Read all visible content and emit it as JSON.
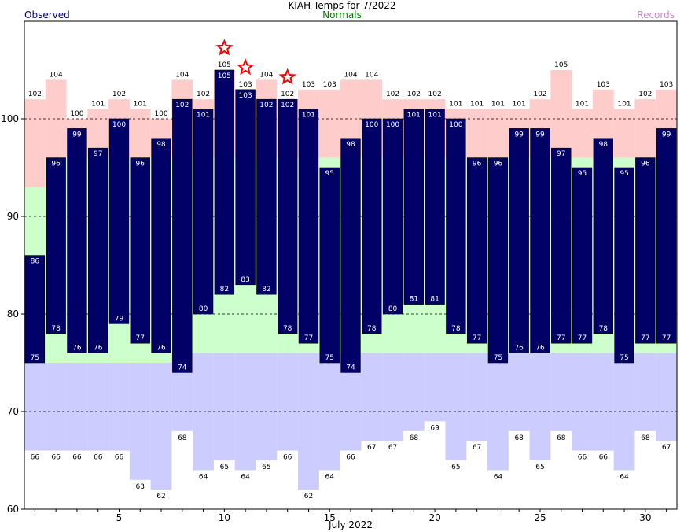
{
  "header": {
    "title": "KIAH Temps for 7/2022",
    "normals_label": "Normals",
    "observed_label": "Observed",
    "records_label": "Records"
  },
  "colors": {
    "observed": "#000066",
    "normal_high": "#ccffcc",
    "normal_low": "#ccccff",
    "record_high": "#ffcccc",
    "record_low": "#ffffff",
    "record_star": "#ff0000",
    "text": "#000000"
  },
  "chart_data": {
    "type": "bar",
    "title": "KIAH Temps for 7/2022",
    "xlabel": "July 2022",
    "ylabel": "",
    "ylim": [
      60,
      110
    ],
    "xlim": [
      0.5,
      31.5
    ],
    "yticks": [
      60,
      70,
      80,
      90,
      100
    ],
    "xticks": [
      5,
      10,
      15,
      20,
      25,
      30
    ],
    "gridlines": [
      70,
      80,
      90,
      100
    ],
    "grid": "dashed horizontal at 70, 80, 90, 100",
    "days": [
      1,
      2,
      3,
      4,
      5,
      6,
      7,
      8,
      9,
      10,
      11,
      12,
      13,
      14,
      15,
      16,
      17,
      18,
      19,
      20,
      21,
      22,
      23,
      24,
      25,
      26,
      27,
      28,
      29,
      30,
      31
    ],
    "series": [
      {
        "name": "Observed",
        "key": "observed_high",
        "values": [
          86,
          96,
          99,
          97,
          100,
          96,
          98,
          102,
          101,
          105,
          103,
          102,
          102,
          101,
          95,
          98,
          100,
          100,
          101,
          101,
          100,
          96,
          96,
          99,
          99,
          97,
          95,
          98,
          95,
          96,
          99
        ]
      },
      {
        "name": "Observed",
        "key": "observed_low",
        "values": [
          75,
          78,
          76,
          76,
          79,
          77,
          76,
          74,
          80,
          82,
          83,
          82,
          78,
          77,
          75,
          74,
          78,
          80,
          81,
          81,
          78,
          77,
          75,
          76,
          76,
          77,
          77,
          78,
          75,
          77,
          77
        ]
      },
      {
        "name": "Records",
        "key": "record_high",
        "values": [
          102,
          104,
          100,
          101,
          102,
          101,
          100,
          104,
          102,
          105,
          103,
          104,
          102,
          103,
          103,
          104,
          104,
          102,
          102,
          102,
          101,
          101,
          101,
          101,
          102,
          105,
          101,
          103,
          101,
          102,
          103
        ]
      },
      {
        "name": "Records",
        "key": "record_low",
        "values": [
          66,
          66,
          66,
          66,
          66,
          63,
          62,
          68,
          64,
          65,
          64,
          65,
          66,
          62,
          64,
          66,
          67,
          67,
          68,
          69,
          65,
          67,
          64,
          68,
          65,
          68,
          66,
          66,
          64,
          68,
          67
        ]
      },
      {
        "name": "Normals",
        "key": "normal_high",
        "values": [
          93,
          96,
          96,
          96,
          96,
          96,
          96,
          96,
          96,
          96,
          96,
          96,
          96,
          96,
          96,
          96,
          96,
          96,
          96,
          96,
          96,
          96,
          96,
          96,
          96,
          96,
          96,
          96,
          96,
          96,
          96
        ]
      },
      {
        "name": "Normals",
        "key": "normal_low",
        "values": [
          75,
          75,
          75,
          75,
          75,
          75,
          75,
          76,
          76,
          76,
          76,
          76,
          76,
          76,
          76,
          76,
          76,
          76,
          76,
          76,
          76,
          76,
          76,
          76,
          76,
          76,
          76,
          76,
          76,
          76,
          76
        ]
      }
    ],
    "record_days": [
      10,
      11,
      13
    ]
  }
}
